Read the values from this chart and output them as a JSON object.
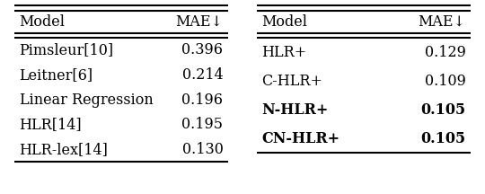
{
  "table1": {
    "header": [
      "Model",
      "MAE↓"
    ],
    "rows": [
      [
        "Pimsleur[10]",
        "0.396"
      ],
      [
        "Leitner[6]",
        "0.214"
      ],
      [
        "Linear Regression",
        "0.196"
      ],
      [
        "HLR[14]",
        "0.195"
      ],
      [
        "HLR-lex[14]",
        "0.130"
      ]
    ],
    "bold_rows": []
  },
  "table2": {
    "header": [
      "Model",
      "MAE↓"
    ],
    "rows": [
      [
        "HLR+",
        "0.129"
      ],
      [
        "C-HLR+",
        "0.109"
      ],
      [
        "N-HLR+",
        "0.105"
      ],
      [
        "CN-HLR+",
        "0.105"
      ]
    ],
    "bold_rows": [
      2,
      3
    ]
  },
  "background_color": "#ffffff",
  "font_size": 11.5,
  "line_sep": 0.0022,
  "thick_lw": 1.5,
  "thin_lw": 0.8
}
